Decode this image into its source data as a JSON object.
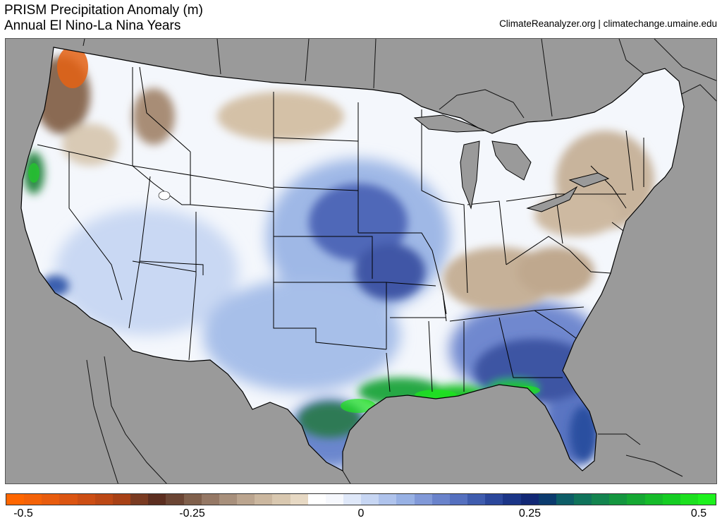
{
  "title": {
    "line1": "PRISM Precipitation Anomaly (m)",
    "line2": "Annual El Nino-La Nina Years"
  },
  "credit": "ClimateReanalyzer.org | climatechange.umaine.edu",
  "colors": {
    "ocean_land_mask": "#9a9a9a",
    "border_lines": "#000000",
    "dry_extreme": "#f26a10",
    "neutral": "#ffffff",
    "wet_extreme": "#1ee61e"
  },
  "colorbar": {
    "min": -0.5,
    "max": 0.5,
    "tick_labels": [
      "-0.5",
      "-0.25",
      "0",
      "0.25",
      "0.5"
    ],
    "tick_values": [
      -0.5,
      -0.25,
      0,
      0.25,
      0.5
    ],
    "colors": [
      "#ff6600",
      "#f46208",
      "#e85c0e",
      "#db5512",
      "#cc4e14",
      "#bc4815",
      "#a84116",
      "#7a3b22",
      "#5c2e20",
      "#6b4534",
      "#80604c",
      "#957865",
      "#a8907c",
      "#bba58f",
      "#cbb79f",
      "#d9c8b0",
      "#e7d9c4",
      "#ffffff",
      "#f6f8fd",
      "#dfe8f9",
      "#c7d6f3",
      "#afc3ec",
      "#98b1e4",
      "#8199d8",
      "#6a83cb",
      "#5570bf",
      "#3f5cae",
      "#2b479b",
      "#1b3587",
      "#122875",
      "#0b3b6e",
      "#0d5d67",
      "#10735b",
      "#13844f",
      "#14963f",
      "#15a833",
      "#16bb2a",
      "#15cd23",
      "#1ce01f",
      "#1ef21e"
    ]
  },
  "map_regions": [
    {
      "name": "pacific-northwest",
      "anomaly": "dry"
    },
    {
      "name": "northern-rockies",
      "anomaly": "dry"
    },
    {
      "name": "northern-plains",
      "anomaly": "slightly-dry"
    },
    {
      "name": "california",
      "anomaly": "wet"
    },
    {
      "name": "southwest",
      "anomaly": "wet"
    },
    {
      "name": "central-plains",
      "anomaly": "wet"
    },
    {
      "name": "ohio-valley",
      "anomaly": "dry"
    },
    {
      "name": "northeast",
      "anomaly": "dry"
    },
    {
      "name": "gulf-coast",
      "anomaly": "very-wet"
    },
    {
      "name": "florida",
      "anomaly": "very-wet"
    }
  ]
}
